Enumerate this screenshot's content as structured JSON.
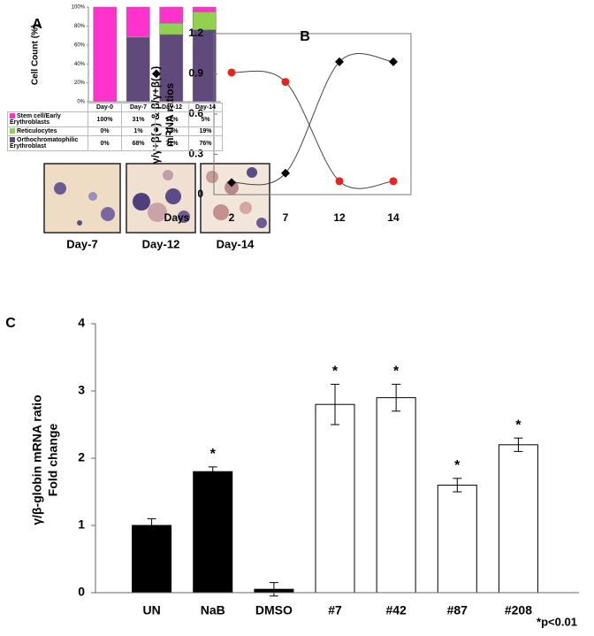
{
  "chart_data": [
    {
      "type": "stacked_bar",
      "panel": "A",
      "y_label": "Cell Count (%)",
      "categories": [
        "Day-0",
        "Day-7",
        "Day-12",
        "Day-14"
      ],
      "series": [
        {
          "name": "Stem cell/Early Erythroblasts",
          "color": "#ff33cc",
          "values": [
            100,
            31,
            17,
            5
          ],
          "value_labels": [
            "100%",
            "31%",
            "17%",
            "5%"
          ]
        },
        {
          "name": "Reticulocytes",
          "color": "#92d050",
          "values": [
            0,
            1,
            12,
            19
          ],
          "value_labels": [
            "0%",
            "1%",
            "12%",
            "19%"
          ]
        },
        {
          "name": "Orthochromatophilic Erythroblast",
          "color": "#604a7b",
          "values": [
            0,
            68,
            71,
            76
          ],
          "value_labels": [
            "0%",
            "68%",
            "71%",
            "76%"
          ]
        }
      ],
      "ylim": [
        0,
        100
      ],
      "yticks": [
        {
          "value": 0,
          "label": "0%"
        },
        {
          "value": 20,
          "label": "20%"
        },
        {
          "value": 40,
          "label": "40%"
        },
        {
          "value": 60,
          "label": "60%"
        },
        {
          "value": 80,
          "label": "80%"
        },
        {
          "value": 100,
          "label": "100%"
        }
      ]
    },
    {
      "type": "line",
      "panel": "B",
      "x_label": "Days",
      "y_label": [
        "γ/γ+β(●) & β/γ+β(◆)",
        "mRNA ratios"
      ],
      "categories": [
        "2",
        "7",
        "12",
        "14"
      ],
      "series": [
        {
          "color": "#e8231b",
          "marker": "circle",
          "values": [
            0.91,
            0.84,
            0.1,
            0.1
          ]
        },
        {
          "color": "#000000",
          "marker": "diamond",
          "values": [
            0.09,
            0.16,
            0.99,
            0.99
          ]
        }
      ],
      "ylim": [
        0,
        1.2
      ],
      "yticks": [
        0,
        0.3,
        0.6,
        0.9,
        1.2
      ]
    },
    {
      "type": "bar",
      "panel": "C",
      "y_label": [
        "γ/β-globin mRNA ratio",
        "Fold change"
      ],
      "categories": [
        "UN",
        "NaB",
        "DMSO",
        "#7",
        "#42",
        "#87",
        "#208"
      ],
      "values": [
        1.0,
        1.8,
        0.05,
        2.8,
        2.9,
        1.6,
        2.2
      ],
      "errors": [
        0.1,
        0.07,
        0.1,
        0.3,
        0.2,
        0.1,
        0.1
      ],
      "colors": [
        "#000000",
        "#000000",
        "#000000",
        "#ffffff",
        "#ffffff",
        "#ffffff",
        "#ffffff"
      ],
      "significance": [
        null,
        "*",
        null,
        "*",
        "*",
        "*",
        "*"
      ],
      "footnote": "*p<0.01",
      "ylim": [
        0,
        4
      ],
      "yticks": [
        0,
        1,
        2,
        3,
        4
      ]
    }
  ],
  "micrographs": [
    {
      "label": "Day-7"
    },
    {
      "label": "Day-12"
    },
    {
      "label": "Day-14"
    }
  ]
}
